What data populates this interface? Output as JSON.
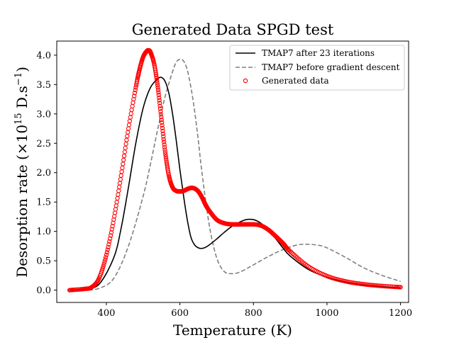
{
  "chart_data": {
    "type": "line",
    "title": "Generated Data SPGD test",
    "xlabel": "Temperature (K)",
    "ylabel_prefix": "Desorption rate (×10",
    "ylabel_exponent": "15",
    "ylabel_units": " D.s",
    "ylabel_units_exponent": "−1",
    "ylabel_suffix": ")",
    "xlim": [
      265,
      1222
    ],
    "ylim": [
      -0.21,
      4.24
    ],
    "xticks": [
      400,
      600,
      800,
      1000,
      1200
    ],
    "xtick_labels": [
      "400",
      "600",
      "800",
      "1000",
      "1200"
    ],
    "yticks": [
      0.0,
      0.5,
      1.0,
      1.5,
      2.0,
      2.5,
      3.0,
      3.5,
      4.0
    ],
    "ytick_labels": [
      "0.0",
      "0.5",
      "1.0",
      "1.5",
      "2.0",
      "2.5",
      "3.0",
      "3.5",
      "4.0"
    ],
    "grid": false,
    "legend_position": "top-right",
    "series": [
      {
        "name": "TMAP7 after 23 iterations",
        "style": "solid",
        "color": "#000000",
        "x": [
          300,
          340,
          380,
          420,
          440,
          460,
          480,
          500,
          520,
          540,
          550,
          560,
          570,
          580,
          590,
          600,
          610,
          620,
          630,
          640,
          650,
          660,
          670,
          680,
          700,
          720,
          740,
          760,
          780,
          800,
          820,
          840,
          860,
          880,
          900,
          950,
          1000,
          1050,
          1100,
          1150,
          1200
        ],
        "y": [
          0.0,
          0.02,
          0.1,
          0.55,
          1.05,
          1.75,
          2.5,
          3.1,
          3.45,
          3.6,
          3.62,
          3.55,
          3.35,
          3.0,
          2.55,
          2.05,
          1.6,
          1.2,
          0.9,
          0.77,
          0.72,
          0.71,
          0.73,
          0.77,
          0.87,
          0.98,
          1.08,
          1.15,
          1.2,
          1.2,
          1.14,
          1.02,
          0.88,
          0.72,
          0.58,
          0.35,
          0.22,
          0.14,
          0.09,
          0.06,
          0.04
        ]
      },
      {
        "name": "TMAP7 before gradient descent",
        "style": "dashed",
        "color": "#808080",
        "x": [
          300,
          340,
          380,
          420,
          460,
          500,
          520,
          540,
          560,
          580,
          590,
          600,
          610,
          620,
          630,
          640,
          650,
          660,
          680,
          700,
          720,
          740,
          760,
          780,
          800,
          840,
          880,
          920,
          950,
          980,
          1000,
          1050,
          1100,
          1150,
          1200
        ],
        "y": [
          0.0,
          0.0,
          0.03,
          0.2,
          0.75,
          1.6,
          2.15,
          2.75,
          3.3,
          3.72,
          3.88,
          3.93,
          3.9,
          3.75,
          3.45,
          3.05,
          2.55,
          2.0,
          1.1,
          0.55,
          0.32,
          0.28,
          0.3,
          0.36,
          0.43,
          0.57,
          0.69,
          0.77,
          0.78,
          0.76,
          0.72,
          0.56,
          0.38,
          0.25,
          0.15
        ]
      },
      {
        "name": "Generated data",
        "style": "markers",
        "color": "#ff0000",
        "x": [
          300,
          340,
          360,
          380,
          400,
          420,
          440,
          460,
          480,
          490,
          500,
          510,
          515,
          520,
          530,
          540,
          550,
          560,
          570,
          580,
          590,
          600,
          610,
          620,
          630,
          640,
          650,
          660,
          670,
          680,
          700,
          720,
          740,
          760,
          780,
          800,
          820,
          840,
          860,
          880,
          900,
          950,
          1000,
          1050,
          1100,
          1150,
          1200
        ],
        "y": [
          0.0,
          0.02,
          0.05,
          0.2,
          0.6,
          1.2,
          1.95,
          2.75,
          3.45,
          3.75,
          3.97,
          4.07,
          4.08,
          4.05,
          3.85,
          3.45,
          2.9,
          2.35,
          1.95,
          1.75,
          1.69,
          1.68,
          1.69,
          1.72,
          1.74,
          1.73,
          1.68,
          1.58,
          1.45,
          1.35,
          1.2,
          1.14,
          1.12,
          1.12,
          1.12,
          1.12,
          1.1,
          1.03,
          0.92,
          0.8,
          0.66,
          0.4,
          0.24,
          0.15,
          0.1,
          0.07,
          0.05
        ]
      }
    ]
  }
}
